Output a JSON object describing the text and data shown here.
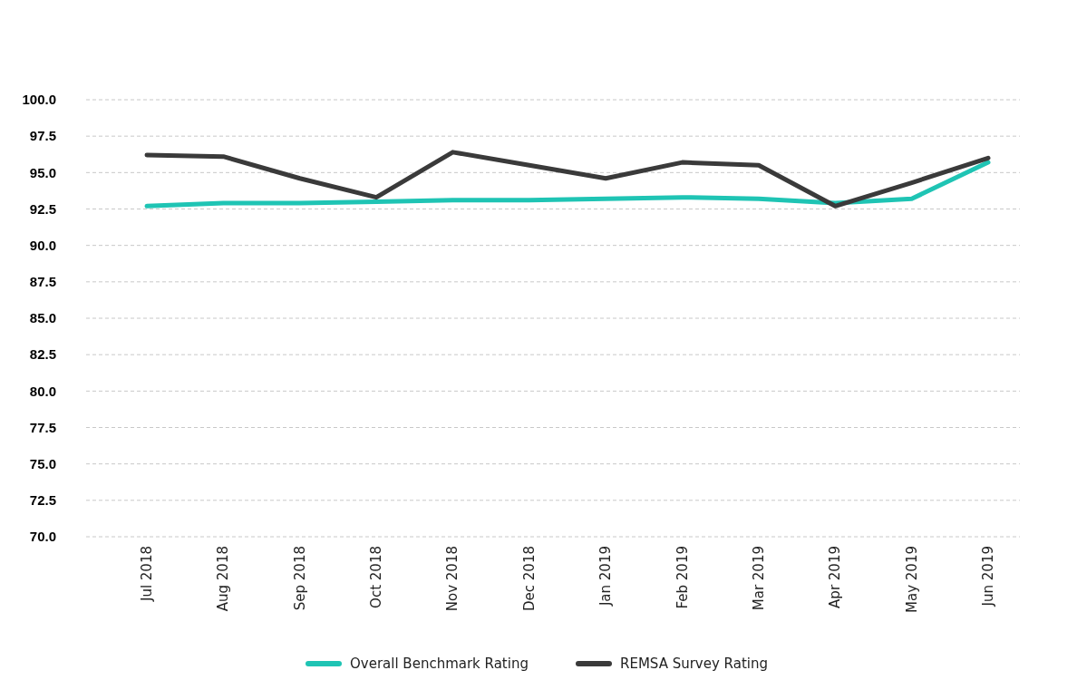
{
  "chart_data": {
    "type": "line",
    "categories": [
      "Jul 2018",
      "Aug 2018",
      "Sep 2018",
      "Oct 2018",
      "Nov 2018",
      "Dec 2018",
      "Jan 2019",
      "Feb 2019",
      "Mar 2019",
      "Apr 2019",
      "May 2019",
      "Jun 2019"
    ],
    "series": [
      {
        "name": "Overall Benchmark Rating",
        "color": "#1fc4b4",
        "values": [
          92.7,
          92.9,
          92.9,
          93.0,
          93.1,
          93.1,
          93.2,
          93.3,
          93.2,
          92.9,
          93.2,
          95.7
        ]
      },
      {
        "name": "REMSA Survey Rating",
        "color": "#3a3a3a",
        "values": [
          96.2,
          96.1,
          94.6,
          93.3,
          96.4,
          95.5,
          94.6,
          95.7,
          95.5,
          92.7,
          94.3,
          96.0
        ]
      }
    ],
    "ylim": [
      70,
      100
    ],
    "yticks": [
      {
        "value": 70,
        "label": "70.0"
      },
      {
        "value": 72.5,
        "label": "72.5"
      },
      {
        "value": 75,
        "label": "75.0"
      },
      {
        "value": 77.5,
        "label": "77.5"
      },
      {
        "value": 80,
        "label": "80.0"
      },
      {
        "value": 82.5,
        "label": "82.5"
      },
      {
        "value": 85,
        "label": "85.0"
      },
      {
        "value": 87.5,
        "label": "87.5"
      },
      {
        "value": 90,
        "label": "90.0"
      },
      {
        "value": 92.5,
        "label": "92.5"
      },
      {
        "value": 95,
        "label": "95.0"
      },
      {
        "value": 97.5,
        "label": "97.5"
      },
      {
        "value": 100,
        "label": "100.0"
      }
    ],
    "grid": "y",
    "legend": "bottom",
    "marker": "none",
    "line_style": "solid"
  }
}
